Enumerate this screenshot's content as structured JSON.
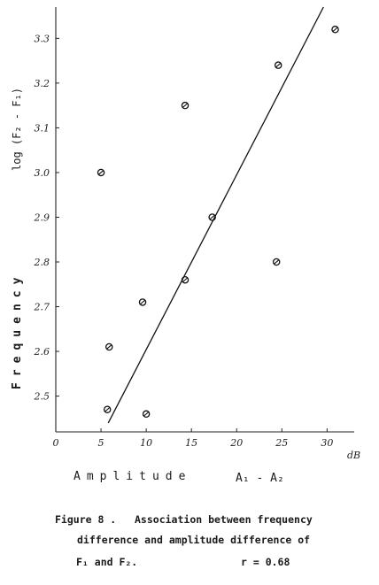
{
  "chart_data": {
    "type": "scatter",
    "ylabel_word": "Frequency",
    "ylabel_expr": "log (F₂ - F₁)",
    "xlabel_word": "Amplitude",
    "xlabel_expr": "A₁ - A₂",
    "x_unit": "dB",
    "xlim": [
      0,
      33
    ],
    "ylim": [
      2.42,
      3.37
    ],
    "x_ticks": [
      0,
      5,
      10,
      15,
      20,
      25,
      30
    ],
    "x_tick_labels": [
      "0",
      "5",
      "10",
      "15",
      "20",
      "25",
      "30"
    ],
    "y_ticks": [
      2.5,
      2.6,
      2.7,
      2.8,
      2.9,
      3.0,
      3.1,
      3.2,
      3.3
    ],
    "y_tick_labels": [
      "2.5",
      "2.6",
      "2.7",
      "2.8",
      "2.9",
      "3.0",
      "3.1",
      "3.2",
      "3.3"
    ],
    "points": [
      {
        "x": 5.0,
        "y": 3.0
      },
      {
        "x": 5.7,
        "y": 2.47
      },
      {
        "x": 5.9,
        "y": 2.61
      },
      {
        "x": 9.6,
        "y": 2.71
      },
      {
        "x": 10.0,
        "y": 2.46
      },
      {
        "x": 14.3,
        "y": 2.76
      },
      {
        "x": 14.3,
        "y": 3.15
      },
      {
        "x": 17.3,
        "y": 2.9
      },
      {
        "x": 24.4,
        "y": 2.8
      },
      {
        "x": 24.6,
        "y": 3.24
      },
      {
        "x": 30.9,
        "y": 3.32
      }
    ],
    "regression_line": {
      "x": [
        5.8,
        29.6
      ],
      "y": [
        2.44,
        3.37
      ]
    },
    "grid": false,
    "legend": "none"
  },
  "caption": {
    "line1": "Figure 8 .   Association between frequency",
    "line2": "difference and amplitude difference of",
    "line3": "F₁ and F₂.",
    "stat": "r = 0.68"
  }
}
